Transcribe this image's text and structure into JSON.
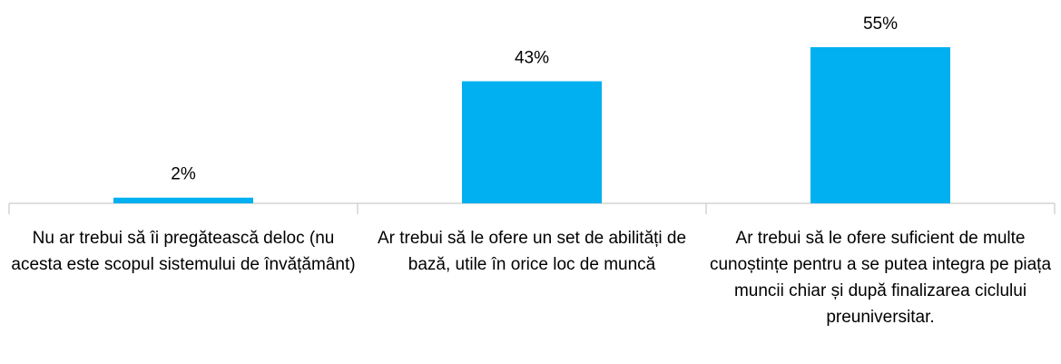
{
  "chart_data": {
    "type": "bar",
    "categories": [
      "Nu ar trebui să îi pregătească deloc (nu acesta este scopul sistemului de învățământ)",
      "Ar trebui să le ofere un set de abilități de bază, utile în orice loc de muncă",
      "Ar trebui să le ofere suficient de multe cunoștințe pentru a se putea integra pe piața muncii chiar și după finalizarea ciclului preuniversitar."
    ],
    "values": [
      2,
      43,
      55
    ],
    "value_labels": [
      "2%",
      "43%",
      "55%"
    ],
    "color": "#00b0f0"
  }
}
